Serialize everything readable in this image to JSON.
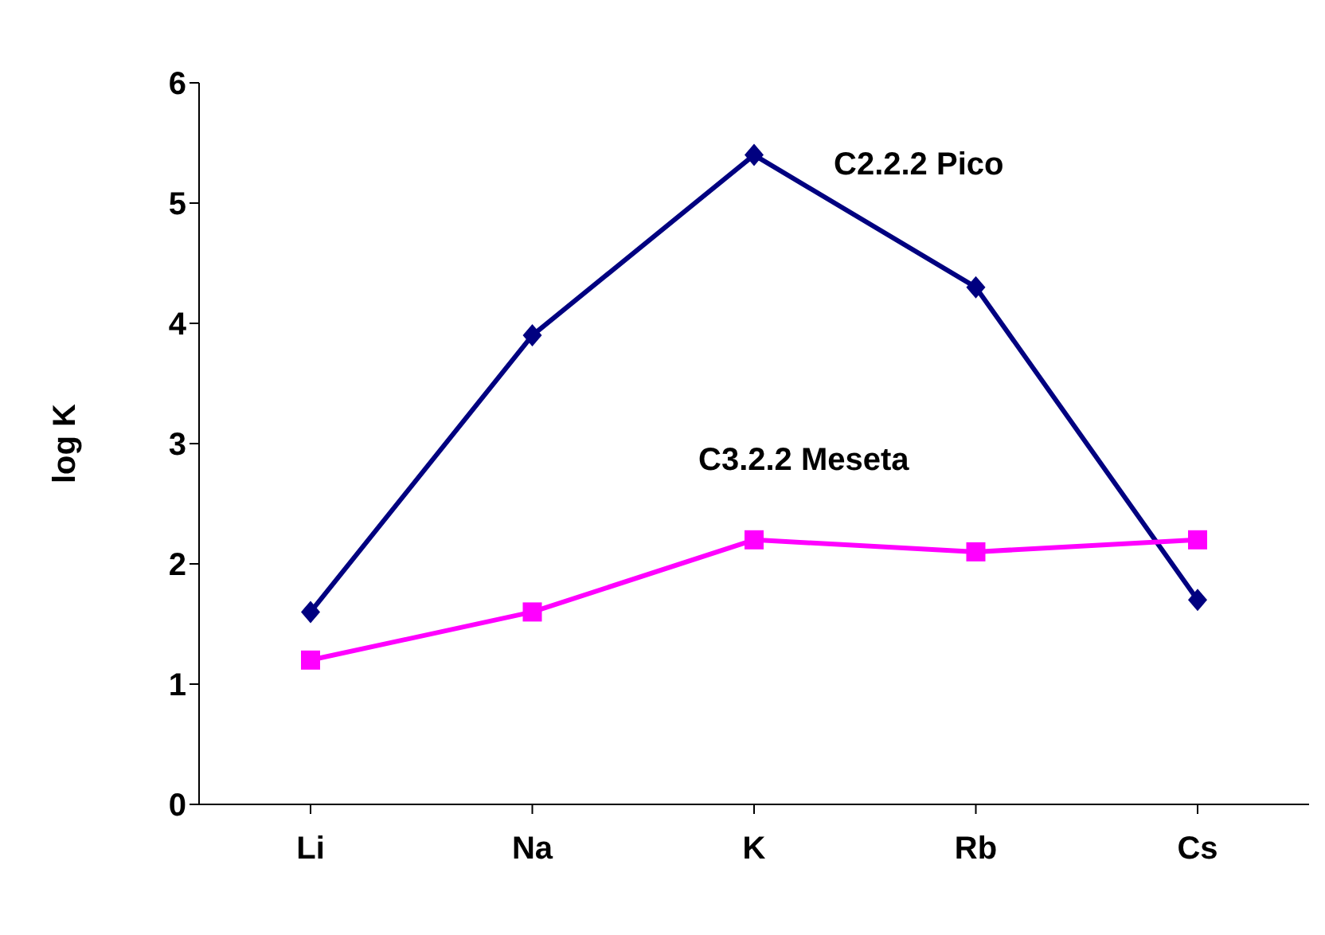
{
  "chart_data": {
    "type": "line",
    "ylabel": "log K",
    "categories": [
      "Li",
      "Na",
      "K",
      "Rb",
      "Cs"
    ],
    "ylim": [
      0,
      6
    ],
    "yticks": [
      0,
      1,
      2,
      3,
      4,
      5,
      6
    ],
    "grid": false,
    "legend": false,
    "series": [
      {
        "name": "C2.2.2  Pico",
        "color": "#000080",
        "marker": "diamond",
        "values": [
          1.6,
          3.9,
          5.4,
          4.3,
          1.7
        ]
      },
      {
        "name": "C3.2.2  Meseta",
        "color": "#ff00ff",
        "marker": "square",
        "values": [
          1.2,
          1.6,
          2.2,
          2.1,
          2.2
        ]
      }
    ]
  }
}
